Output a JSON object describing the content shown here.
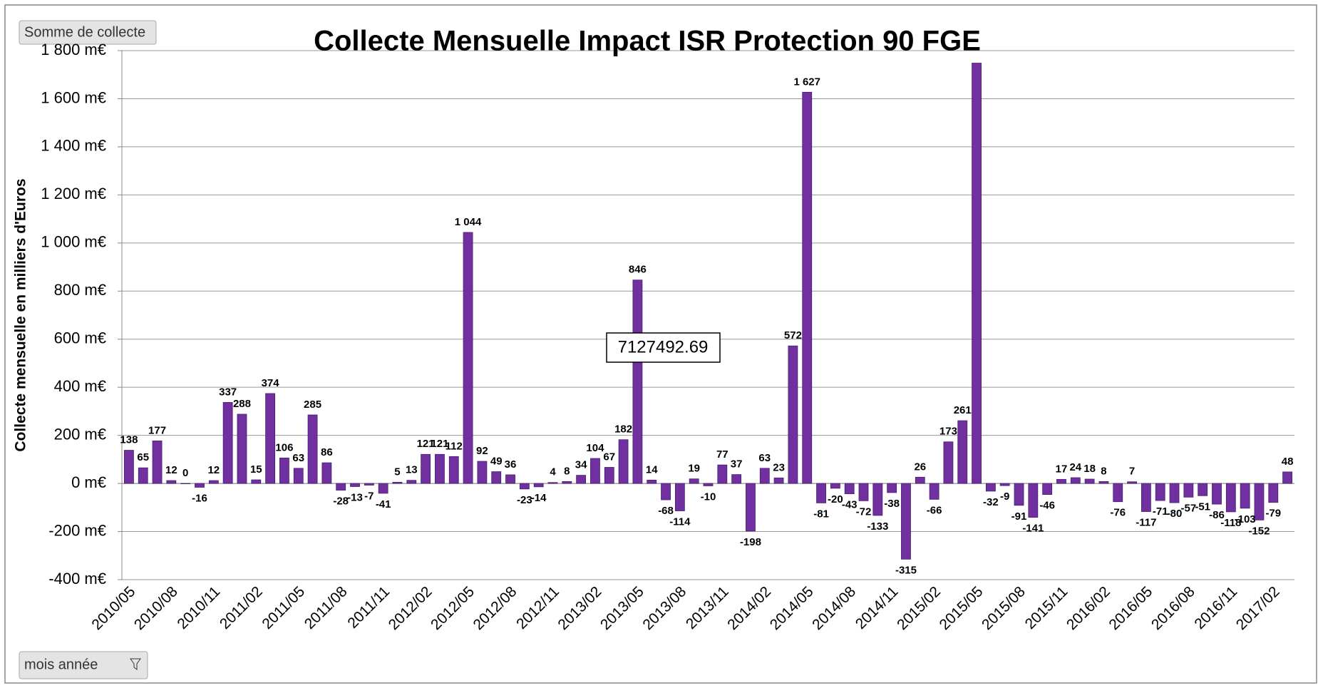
{
  "chart_data": {
    "type": "bar",
    "title": "Collecte Mensuelle Impact ISR Protection 90 FGE",
    "y_label": "Collecte mensuelle en milliers d'Euros",
    "field_button": "Somme de collecte",
    "axis_button": "mois année",
    "annotation": "7127492.69",
    "color": "#7030a0",
    "grid": true,
    "categories": [
      "2010/05",
      null,
      null,
      "2010/08",
      null,
      null,
      "2010/11",
      null,
      null,
      "2011/02",
      null,
      null,
      "2011/05",
      null,
      null,
      "2011/08",
      null,
      null,
      "2011/11",
      null,
      null,
      "2012/02",
      null,
      null,
      "2012/05",
      null,
      null,
      "2012/08",
      null,
      null,
      "2012/11",
      null,
      null,
      "2013/02",
      null,
      null,
      "2013/05",
      null,
      null,
      "2013/08",
      null,
      null,
      "2013/11",
      null,
      null,
      "2014/02",
      null,
      null,
      "2014/05",
      null,
      null,
      "2014/08",
      null,
      null,
      "2014/11",
      null,
      null,
      "2015/02",
      null,
      null,
      "2015/05",
      null,
      null,
      "2015/08",
      null,
      null,
      "2015/11",
      null,
      null,
      "2016/02",
      null,
      null,
      "2016/05",
      null,
      null,
      "2016/08",
      null,
      null,
      "2016/11",
      null,
      null,
      "2017/02",
      null
    ],
    "values": [
      138,
      65,
      177,
      12,
      0,
      -16,
      12,
      337,
      288,
      15,
      374,
      106,
      63,
      285,
      86,
      -28,
      -13,
      -7,
      -41,
      5,
      13,
      121,
      121,
      112,
      1044,
      92,
      49,
      36,
      -23,
      -14,
      4,
      8,
      34,
      104,
      67,
      182,
      846,
      14,
      -68,
      -114,
      19,
      -10,
      77,
      37,
      -198,
      63,
      23,
      572,
      1627,
      -81,
      -20,
      -43,
      -72,
      -133,
      -38,
      -315,
      26,
      -66,
      173,
      261,
      1748,
      -32,
      -9,
      -91,
      -141,
      -46,
      17,
      24,
      18,
      8,
      -76,
      7,
      -117,
      -71,
      -80,
      -57,
      -51,
      -86,
      -118,
      -103,
      -152,
      -79,
      48
    ],
    "value_labels": [
      "138",
      "65",
      "177",
      "12",
      "0",
      "-16",
      "12",
      "337",
      "288",
      "15",
      "374",
      "106",
      "63",
      "285",
      "86",
      "-28",
      "-13",
      "-7",
      "-41",
      "5",
      "13",
      "121",
      "121",
      "112",
      "1 044",
      "92",
      "49",
      "36",
      "-23",
      "-14",
      "4",
      "8",
      "34",
      "104",
      "67",
      "182",
      "846",
      "14",
      "-68",
      "-114",
      "19",
      "-10",
      "77",
      "37",
      "-198",
      "63",
      "23",
      "572",
      "1 627",
      "-81",
      "-20",
      "-43",
      "-72",
      "-133",
      "-38",
      "-315",
      "26",
      "-66",
      "173",
      "261",
      null,
      "-32",
      "-9",
      "-91",
      "-141",
      "-46",
      "17",
      "24",
      "18",
      "8",
      "-76",
      "7",
      "-117",
      "-71",
      "-80",
      "-57",
      "-51",
      "-86",
      "-118",
      "-103",
      "-152",
      "-79",
      "48"
    ],
    "ylim": [
      -400,
      1800
    ],
    "yticks": [
      {
        "value": -400,
        "label": "-400 m€"
      },
      {
        "value": -200,
        "label": "-200 m€"
      },
      {
        "value": 0,
        "label": "0 m€"
      },
      {
        "value": 200,
        "label": "200 m€"
      },
      {
        "value": 400,
        "label": "400 m€"
      },
      {
        "value": 600,
        "label": "600 m€"
      },
      {
        "value": 800,
        "label": "800 m€"
      },
      {
        "value": 1000,
        "label": "1 000 m€"
      },
      {
        "value": 1200,
        "label": "1 200 m€"
      },
      {
        "value": 1400,
        "label": "1 400 m€"
      },
      {
        "value": 1600,
        "label": "1 600 m€"
      },
      {
        "value": 1800,
        "label": "1 800 m€"
      }
    ]
  }
}
